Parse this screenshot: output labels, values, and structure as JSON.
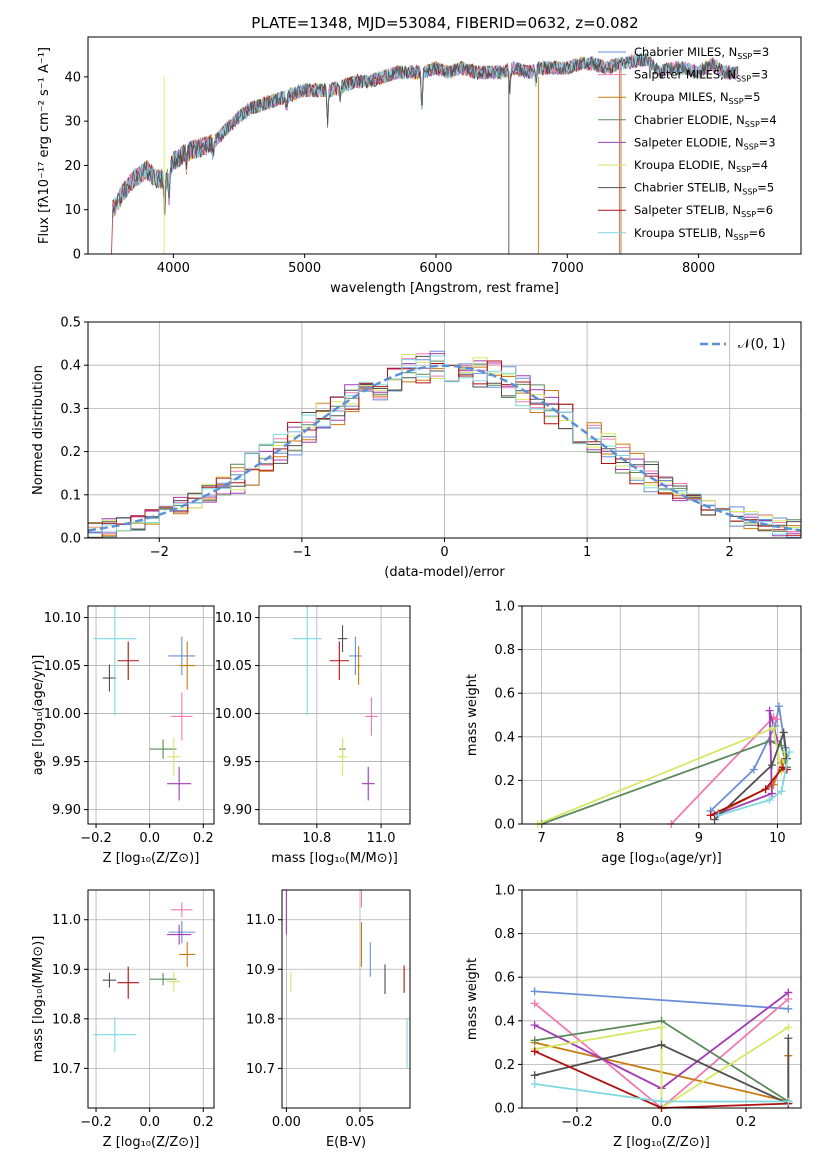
{
  "figure": {
    "title": "PLATE=1348, MJD=53084, FIBERID=0632, z=0.082"
  },
  "colors": [
    "#6a8fd6",
    "#f07ab0",
    "#c97a10",
    "#5a8a5a",
    "#a23bb5",
    "#d6e866",
    "#505050",
    "#b01010",
    "#7fd8e0"
  ],
  "chart_data": [
    {
      "id": "spectrum",
      "type": "line",
      "title": "PLATE=1348, MJD=53084, FIBERID=0632, z=0.082",
      "xlabel": "wavelength [Angstrom, rest frame]",
      "ylabel": "Flux [fλ10⁻¹⁷ erg cm⁻² s⁻¹ A⁻¹]",
      "xlim": [
        3350,
        8780
      ],
      "ylim": [
        0,
        49
      ],
      "xticks": [
        "4000",
        "5000",
        "6000",
        "7000",
        "8000"
      ],
      "yticks": [
        "0",
        "10",
        "20",
        "30",
        "40"
      ],
      "legend": [
        "Chabrier MILES, N_SSP=3",
        "Salpeter MILES, N_SSP=3",
        "Kroupa MILES, N_SSP=5",
        "Chabrier ELODIE, N_SSP=4",
        "Salpeter ELODIE, N_SSP=3",
        "Kroupa ELODIE, N_SSP=4",
        "Chabrier STELIB, N_SSP=5",
        "Salpeter STELIB, N_SSP=6",
        "Kroupa STELIB, N_SSP=6"
      ],
      "legend_position": "right",
      "continuum": [
        [
          3540,
          10
        ],
        [
          3620,
          14
        ],
        [
          3700,
          17
        ],
        [
          3800,
          19
        ],
        [
          3870,
          17
        ],
        [
          3950,
          17
        ],
        [
          4000,
          21
        ],
        [
          4100,
          23
        ],
        [
          4200,
          24
        ],
        [
          4300,
          25
        ],
        [
          4400,
          28
        ],
        [
          4500,
          31
        ],
        [
          4600,
          33
        ],
        [
          4700,
          34
        ],
        [
          4800,
          35
        ],
        [
          4900,
          36
        ],
        [
          5000,
          37
        ],
        [
          5100,
          37
        ],
        [
          5200,
          37
        ],
        [
          5300,
          38
        ],
        [
          5400,
          39
        ],
        [
          5500,
          39
        ],
        [
          5600,
          40
        ],
        [
          5700,
          41
        ],
        [
          5800,
          41
        ],
        [
          5900,
          41
        ],
        [
          6000,
          42
        ],
        [
          6100,
          41
        ],
        [
          6200,
          42
        ],
        [
          6300,
          41
        ],
        [
          6400,
          41
        ],
        [
          6500,
          41
        ],
        [
          6600,
          42
        ],
        [
          6700,
          41
        ],
        [
          6800,
          42
        ],
        [
          6900,
          42
        ],
        [
          7000,
          42
        ],
        [
          7100,
          43
        ],
        [
          7200,
          43
        ],
        [
          7300,
          42
        ],
        [
          7400,
          43
        ],
        [
          7600,
          44
        ],
        [
          7700,
          41
        ],
        [
          7800,
          42
        ],
        [
          7900,
          42
        ],
        [
          8000,
          41
        ],
        [
          8100,
          43
        ],
        [
          8200,
          41
        ],
        [
          8300,
          41
        ]
      ],
      "features": [
        [
          3933,
          -7
        ],
        [
          3968,
          -6
        ],
        [
          4101,
          -3
        ],
        [
          4304,
          -3
        ],
        [
          4861,
          -3
        ],
        [
          5175,
          -7
        ],
        [
          5270,
          -2
        ],
        [
          5893,
          -8
        ],
        [
          6563,
          -5
        ],
        [
          6760,
          -3
        ]
      ]
    },
    {
      "id": "residuals",
      "type": "bar",
      "xlabel": "(data-model)/error",
      "ylabel": "Normed distribution",
      "xlim": [
        -2.5,
        2.5
      ],
      "ylim": [
        0,
        0.5
      ],
      "xticks": [
        "−2",
        "−1",
        "0",
        "1",
        "2"
      ],
      "yticks": [
        "0.0",
        "0.1",
        "0.2",
        "0.3",
        "0.4",
        "0.5"
      ],
      "legend": [
        "𝒩(0, 1)"
      ],
      "legend_position": "top-right",
      "bin_width": 0.1,
      "x_start": -2.5,
      "gaussian_mean": 0,
      "gaussian_sigma": 1
    },
    {
      "id": "age-vs-Z",
      "type": "scatter",
      "xlabel": "Z [log₁₀(Z/Z⊙)]",
      "ylabel": "age  [log₁₀(age/yr)]",
      "xlim": [
        -0.23,
        0.24
      ],
      "ylim": [
        9.885,
        10.112
      ],
      "xticks": [
        "−0.2",
        "0.0",
        "0.2"
      ],
      "yticks": [
        "9.90",
        "9.95",
        "10.00",
        "10.05",
        "10.10"
      ],
      "xtickvals": [
        -0.2,
        0,
        0.2
      ],
      "ytickvals": [
        9.9,
        9.95,
        10.0,
        10.05,
        10.1
      ],
      "points": [
        {
          "x": 0.12,
          "y": 10.06,
          "xe": 0.1,
          "ye": 0.04,
          "c": 0
        },
        {
          "x": 0.12,
          "y": 9.997,
          "xe": 0.08,
          "ye": 0.05,
          "c": 1
        },
        {
          "x": 0.14,
          "y": 10.05,
          "xe": 0.06,
          "ye": 0.05,
          "c": 2
        },
        {
          "x": 0.05,
          "y": 9.963,
          "xe": 0.1,
          "ye": 0.02,
          "c": 3
        },
        {
          "x": 0.11,
          "y": 9.927,
          "xe": 0.09,
          "ye": 0.035,
          "c": 4
        },
        {
          "x": 0.09,
          "y": 9.955,
          "xe": 0.05,
          "ye": 0.04,
          "c": 5
        },
        {
          "x": -0.15,
          "y": 10.037,
          "xe": 0.05,
          "ye": 0.028,
          "c": 6
        },
        {
          "x": -0.08,
          "y": 10.055,
          "xe": 0.08,
          "ye": 0.04,
          "c": 7
        },
        {
          "x": -0.13,
          "y": 10.078,
          "xe": 0.16,
          "ye": 0.16,
          "c": 8
        }
      ]
    },
    {
      "id": "age-vs-mass",
      "type": "scatter",
      "xlabel": "mass [log₁₀(M/M⊙)]",
      "ylabel": "",
      "xlim": [
        10.62,
        11.09
      ],
      "ylim": [
        9.885,
        10.112
      ],
      "xticks": [
        "10.8",
        "11.0"
      ],
      "yticks": [
        "9.90",
        "9.95",
        "10.00",
        "10.05",
        "10.10"
      ],
      "xtickvals": [
        10.8,
        11.0
      ],
      "ytickvals": [
        9.9,
        9.95,
        10.0,
        10.05,
        10.1
      ],
      "points": [
        {
          "x": 10.92,
          "y": 10.06,
          "xe": 0.04,
          "ye": 0.04,
          "c": 0
        },
        {
          "x": 10.97,
          "y": 9.997,
          "xe": 0.04,
          "ye": 0.04,
          "c": 1
        },
        {
          "x": 10.93,
          "y": 10.05,
          "xe": 0.01,
          "ye": 0.04,
          "c": 2
        },
        {
          "x": 10.88,
          "y": 9.963,
          "xe": 0.02,
          "ye": 0.02,
          "c": 3
        },
        {
          "x": 10.96,
          "y": 9.927,
          "xe": 0.04,
          "ye": 0.035,
          "c": 4
        },
        {
          "x": 10.88,
          "y": 9.955,
          "xe": 0.03,
          "ye": 0.04,
          "c": 5
        },
        {
          "x": 10.88,
          "y": 10.078,
          "xe": 0.03,
          "ye": 0.028,
          "c": 6
        },
        {
          "x": 10.87,
          "y": 10.055,
          "xe": 0.06,
          "ye": 0.04,
          "c": 7
        },
        {
          "x": 10.77,
          "y": 10.078,
          "xe": 0.09,
          "ye": 0.16,
          "c": 8
        }
      ]
    },
    {
      "id": "weight-vs-age",
      "type": "line",
      "xlabel": "age  [log₁₀(age/yr)]",
      "ylabel": "mass weight",
      "xlim": [
        6.75,
        10.3
      ],
      "ylim": [
        0,
        1
      ],
      "xticks": [
        "7",
        "8",
        "9",
        "10"
      ],
      "yticks": [
        "0.0",
        "0.2",
        "0.4",
        "0.6",
        "0.8",
        "1.0"
      ],
      "xtickvals": [
        7,
        8,
        9,
        10
      ],
      "ytickvals": [
        0,
        0.2,
        0.4,
        0.6,
        0.8,
        1.0
      ],
      "series": [
        {
          "c": 0,
          "pts": [
            [
              9.15,
              0.06
            ],
            [
              9.7,
              0.25
            ],
            [
              9.97,
              0.45
            ],
            [
              10.02,
              0.54
            ],
            [
              10.1,
              0.35
            ]
          ]
        },
        {
          "c": 1,
          "pts": [
            [
              8.65,
              0.0
            ],
            [
              9.95,
              0.49
            ],
            [
              10.0,
              0.48
            ]
          ]
        },
        {
          "c": 2,
          "pts": [
            [
              9.25,
              0.05
            ],
            [
              9.95,
              0.18
            ],
            [
              10.05,
              0.28
            ],
            [
              10.1,
              0.3
            ]
          ]
        },
        {
          "c": 3,
          "pts": [
            [
              7.0,
              0.0
            ],
            [
              9.9,
              0.38
            ],
            [
              10.05,
              0.36
            ],
            [
              10.12,
              0.26
            ]
          ]
        },
        {
          "c": 4,
          "pts": [
            [
              9.2,
              0.04
            ],
            [
              9.93,
              0.14
            ],
            [
              9.9,
              0.52
            ],
            [
              10.0,
              0.38
            ]
          ]
        },
        {
          "c": 5,
          "pts": [
            [
              6.95,
              0.0
            ],
            [
              9.95,
              0.44
            ],
            [
              10.05,
              0.24
            ],
            [
              10.1,
              0.33
            ]
          ]
        },
        {
          "c": 6,
          "pts": [
            [
              9.2,
              0.02
            ],
            [
              9.93,
              0.27
            ],
            [
              10.08,
              0.42
            ],
            [
              10.12,
              0.3
            ]
          ]
        },
        {
          "c": 7,
          "pts": [
            [
              9.15,
              0.04
            ],
            [
              9.85,
              0.16
            ],
            [
              10.07,
              0.26
            ],
            [
              10.12,
              0.25
            ]
          ]
        },
        {
          "c": 8,
          "pts": [
            [
              9.25,
              0.04
            ],
            [
              9.9,
              0.11
            ],
            [
              10.05,
              0.15
            ],
            [
              10.15,
              0.33
            ]
          ]
        }
      ]
    },
    {
      "id": "mass-vs-Z",
      "type": "scatter",
      "xlabel": "Z [log₁₀(Z/Z⊙)]",
      "ylabel": "mass [log₁₀(M/M⊙)]",
      "xlim": [
        -0.23,
        0.24
      ],
      "ylim": [
        10.62,
        11.06
      ],
      "xticks": [
        "−0.2",
        "0.0",
        "0.2"
      ],
      "yticks": [
        "10.7",
        "10.8",
        "10.9",
        "11.0"
      ],
      "xtickvals": [
        -0.2,
        0,
        0.2
      ],
      "ytickvals": [
        10.7,
        10.8,
        10.9,
        11.0
      ],
      "points": [
        {
          "x": 0.12,
          "y": 10.975,
          "xe": 0.1,
          "ye": 0.045,
          "c": 0
        },
        {
          "x": 0.12,
          "y": 11.02,
          "xe": 0.08,
          "ye": 0.03,
          "c": 1
        },
        {
          "x": 0.14,
          "y": 10.93,
          "xe": 0.06,
          "ye": 0.05,
          "c": 2
        },
        {
          "x": 0.05,
          "y": 10.88,
          "xe": 0.1,
          "ye": 0.025,
          "c": 3
        },
        {
          "x": 0.11,
          "y": 10.97,
          "xe": 0.09,
          "ye": 0.04,
          "c": 4
        },
        {
          "x": 0.09,
          "y": 10.875,
          "xe": 0.05,
          "ye": 0.04,
          "c": 5
        },
        {
          "x": -0.15,
          "y": 10.878,
          "xe": 0.05,
          "ye": 0.03,
          "c": 6
        },
        {
          "x": -0.08,
          "y": 10.873,
          "xe": 0.08,
          "ye": 0.065,
          "c": 7
        },
        {
          "x": -0.13,
          "y": 10.768,
          "xe": 0.16,
          "ye": 0.07,
          "c": 8
        }
      ]
    },
    {
      "id": "mass-vs-EBV",
      "type": "scatter",
      "xlabel": "E(B-V)",
      "ylabel": "",
      "xlim": [
        -0.003,
        0.084
      ],
      "ylim": [
        10.62,
        11.06
      ],
      "xticks": [
        "0.00",
        "0.05"
      ],
      "yticks": [
        "10.7",
        "10.8",
        "10.9",
        "11.0"
      ],
      "xtickvals": [
        0,
        0.05
      ],
      "ytickvals": [
        10.7,
        10.8,
        10.9,
        11.0
      ],
      "points": [
        {
          "x": 0.057,
          "y": 10.92,
          "xe": 0,
          "ye": 0.07,
          "c": 0
        },
        {
          "x": 0.051,
          "y": 11.05,
          "xe": 0,
          "ye": 0.05,
          "c": 1
        },
        {
          "x": 0.051,
          "y": 10.95,
          "xe": 0,
          "ye": 0.09,
          "c": 2
        },
        {
          "x": 0.0,
          "y": 11.02,
          "xe": 0,
          "ye": 0.1,
          "c": 4
        },
        {
          "x": 0.003,
          "y": 10.875,
          "xe": 0,
          "ye": 0.04,
          "c": 5
        },
        {
          "x": 0.067,
          "y": 10.88,
          "xe": 0,
          "ye": 0.06,
          "c": 6
        },
        {
          "x": 0.08,
          "y": 10.88,
          "xe": 0,
          "ye": 0.055,
          "c": 7
        },
        {
          "x": 0.082,
          "y": 10.75,
          "xe": 0,
          "ye": 0.1,
          "c": 8
        }
      ]
    },
    {
      "id": "weight-vs-Z",
      "type": "line",
      "xlabel": "Z [log₁₀(Z/Z⊙)]",
      "ylabel": "mass weight",
      "xlim": [
        -0.33,
        0.33
      ],
      "ylim": [
        0,
        1
      ],
      "xticks": [
        "−0.2",
        "0.0",
        "0.2"
      ],
      "yticks": [
        "0.0",
        "0.2",
        "0.4",
        "0.6",
        "0.8",
        "1.0"
      ],
      "xtickvals": [
        -0.2,
        0,
        0.2
      ],
      "ytickvals": [
        0,
        0.2,
        0.4,
        0.6,
        0.8,
        1.0
      ],
      "series": [
        {
          "c": 0,
          "pts": [
            [
              -0.3,
              0.535
            ],
            [
              0.3,
              0.455
            ]
          ]
        },
        {
          "c": 1,
          "pts": [
            [
              -0.3,
              0.48
            ],
            [
              0.0,
              0.0
            ],
            [
              0.3,
              0.5
            ]
          ]
        },
        {
          "c": 2,
          "pts": [
            [
              -0.3,
              0.3
            ],
            [
              0.3,
              0.03
            ],
            [
              0.3,
              0.24
            ]
          ]
        },
        {
          "c": 3,
          "pts": [
            [
              -0.3,
              0.31
            ],
            [
              0.0,
              0.4
            ],
            [
              0.3,
              0.03
            ]
          ]
        },
        {
          "c": 4,
          "pts": [
            [
              -0.3,
              0.38
            ],
            [
              0.0,
              0.09
            ],
            [
              0.3,
              0.53
            ]
          ]
        },
        {
          "c": 5,
          "pts": [
            [
              -0.3,
              0.27
            ],
            [
              0.0,
              0.37
            ],
            [
              0.0,
              0.0
            ],
            [
              0.3,
              0.37
            ]
          ]
        },
        {
          "c": 6,
          "pts": [
            [
              -0.3,
              0.15
            ],
            [
              0.0,
              0.29
            ],
            [
              0.3,
              0.02
            ],
            [
              0.3,
              0.32
            ]
          ]
        },
        {
          "c": 7,
          "pts": [
            [
              -0.3,
              0.26
            ],
            [
              0.0,
              0.0
            ],
            [
              0.3,
              0.02
            ]
          ]
        },
        {
          "c": 8,
          "pts": [
            [
              -0.3,
              0.11
            ],
            [
              0.0,
              0.03
            ],
            [
              0.3,
              0.03
            ]
          ]
        }
      ]
    }
  ]
}
